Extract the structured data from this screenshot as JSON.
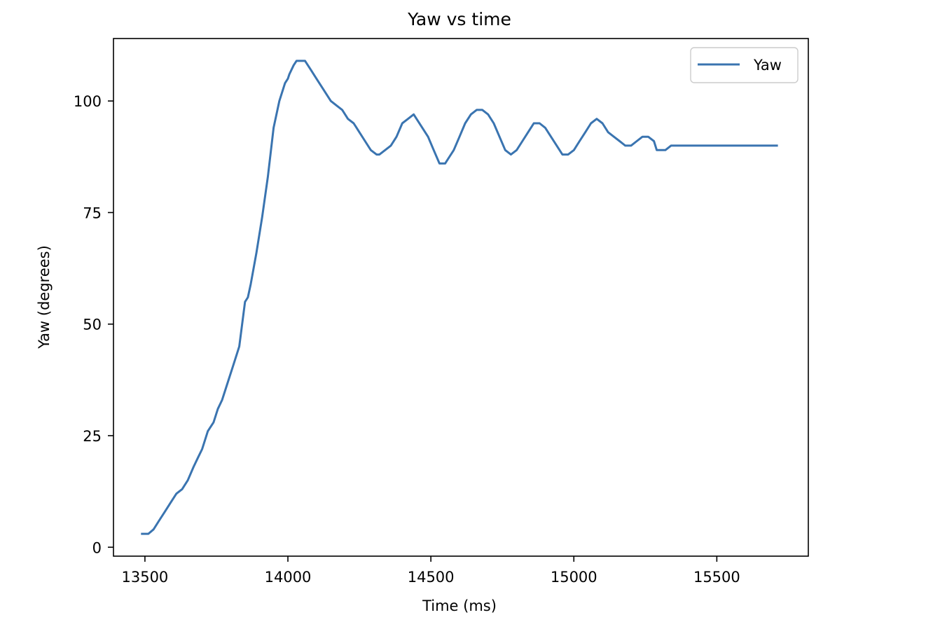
{
  "chart_data": {
    "type": "line",
    "title": "Yaw vs time",
    "xlabel": "Time (ms)",
    "ylabel": "Yaw (degrees)",
    "xlim": [
      13390,
      15820
    ],
    "ylim": [
      -2,
      114
    ],
    "xticks": [
      13500,
      14000,
      14500,
      15000,
      15500
    ],
    "yticks": [
      0,
      25,
      50,
      75,
      100
    ],
    "xtick_labels": [
      "13500",
      "14000",
      "14500",
      "15000",
      "15500"
    ],
    "ytick_labels": [
      "0",
      "25",
      "50",
      "75",
      "100"
    ],
    "grid": false,
    "legend": "top-right",
    "series": [
      {
        "name": "Yaw",
        "color": "#3a74b0",
        "x": [
          13490,
          13512,
          13530,
          13550,
          13570,
          13590,
          13610,
          13630,
          13650,
          13670,
          13685,
          13700,
          13720,
          13740,
          13755,
          13770,
          13790,
          13810,
          13830,
          13850,
          13860,
          13870,
          13890,
          13910,
          13930,
          13950,
          13970,
          13990,
          14000,
          14005,
          14020,
          14030,
          14040,
          14050,
          14060,
          14080,
          14100,
          14110,
          14130,
          14150,
          14170,
          14190,
          14210,
          14230,
          14250,
          14270,
          14290,
          14310,
          14320,
          14340,
          14360,
          14380,
          14400,
          14420,
          14440,
          14450,
          14470,
          14490,
          14510,
          14530,
          14550,
          14560,
          14580,
          14600,
          14620,
          14640,
          14660,
          14680,
          14700,
          14720,
          14740,
          14760,
          14780,
          14800,
          14820,
          14840,
          14860,
          14880,
          14900,
          14920,
          14940,
          14960,
          14980,
          15000,
          15020,
          15040,
          15060,
          15080,
          15100,
          15120,
          15140,
          15160,
          15180,
          15200,
          15220,
          15240,
          15260,
          15280,
          15290,
          15300,
          15320,
          15340,
          15400,
          15500,
          15600,
          15710
        ],
        "y": [
          3,
          3,
          4,
          6,
          8,
          10,
          12,
          13,
          15,
          18,
          20,
          22,
          26,
          28,
          31,
          33,
          37,
          41,
          45,
          55,
          56,
          59,
          66,
          74,
          83,
          94,
          100,
          104,
          105,
          106,
          108,
          109,
          109,
          109,
          109,
          107,
          105,
          104,
          102,
          100,
          99,
          98,
          96,
          95,
          93,
          91,
          89,
          88,
          88,
          89,
          90,
          92,
          95,
          96,
          97,
          96,
          94,
          92,
          89,
          86,
          86,
          87,
          89,
          92,
          95,
          97,
          98,
          98,
          97,
          95,
          92,
          89,
          88,
          89,
          91,
          93,
          95,
          95,
          94,
          92,
          90,
          88,
          88,
          89,
          91,
          93,
          95,
          96,
          95,
          93,
          92,
          91,
          90,
          90,
          91,
          92,
          92,
          91,
          89,
          89,
          89,
          90,
          90,
          90,
          90,
          90
        ]
      }
    ]
  }
}
